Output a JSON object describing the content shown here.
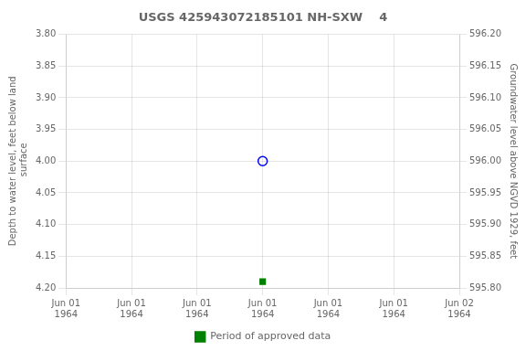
{
  "chart_data": {
    "type": "scatter",
    "title": "USGS 425943072185101 NH-SXW    4",
    "x_label": null,
    "y_label": "Depth to water level, feet below land\n surface",
    "y2_label": "Groundwater level above NGVD 1929, feet",
    "categories": [
      "Jun 01\n1964",
      "Jun 01\n1964",
      "Jun 01\n1964",
      "Jun 01\n1964",
      "Jun 01\n1964",
      "Jun 01\n1964",
      "Jun 02\n1964"
    ],
    "series": [
      {
        "color": "#0000ff",
        "marker": "circle-open",
        "values": [
          null,
          null,
          null,
          4.0,
          null,
          null,
          null
        ]
      },
      {
        "name": "Period of approved data",
        "color": "#008000",
        "marker": "square",
        "values": [
          null,
          null,
          null,
          4.19,
          null,
          null,
          null
        ]
      }
    ],
    "ylim": [
      4.2,
      3.8
    ],
    "yticks": [
      {
        "value": 3.8,
        "label": "3.80"
      },
      {
        "value": 3.85,
        "label": "3.85"
      },
      {
        "value": 3.9,
        "label": "3.90"
      },
      {
        "value": 3.95,
        "label": "3.95"
      },
      {
        "value": 4.0,
        "label": "4.00"
      },
      {
        "value": 4.05,
        "label": "4.05"
      },
      {
        "value": 4.1,
        "label": "4.10"
      },
      {
        "value": 4.15,
        "label": "4.15"
      },
      {
        "value": 4.2,
        "label": "4.20"
      }
    ],
    "y2lim": [
      595.8,
      596.2
    ],
    "y2ticks": [
      {
        "value": 596.2,
        "label": "596.20"
      },
      {
        "value": 596.15,
        "label": "596.15"
      },
      {
        "value": 596.1,
        "label": "596.10"
      },
      {
        "value": 596.05,
        "label": "596.05"
      },
      {
        "value": 596.0,
        "label": "596.00"
      },
      {
        "value": 595.95,
        "label": "595.95"
      },
      {
        "value": 595.9,
        "label": "595.90"
      },
      {
        "value": 595.85,
        "label": "595.85"
      },
      {
        "value": 595.8,
        "label": "595.80"
      }
    ],
    "grid": true,
    "legend": "bottom"
  }
}
